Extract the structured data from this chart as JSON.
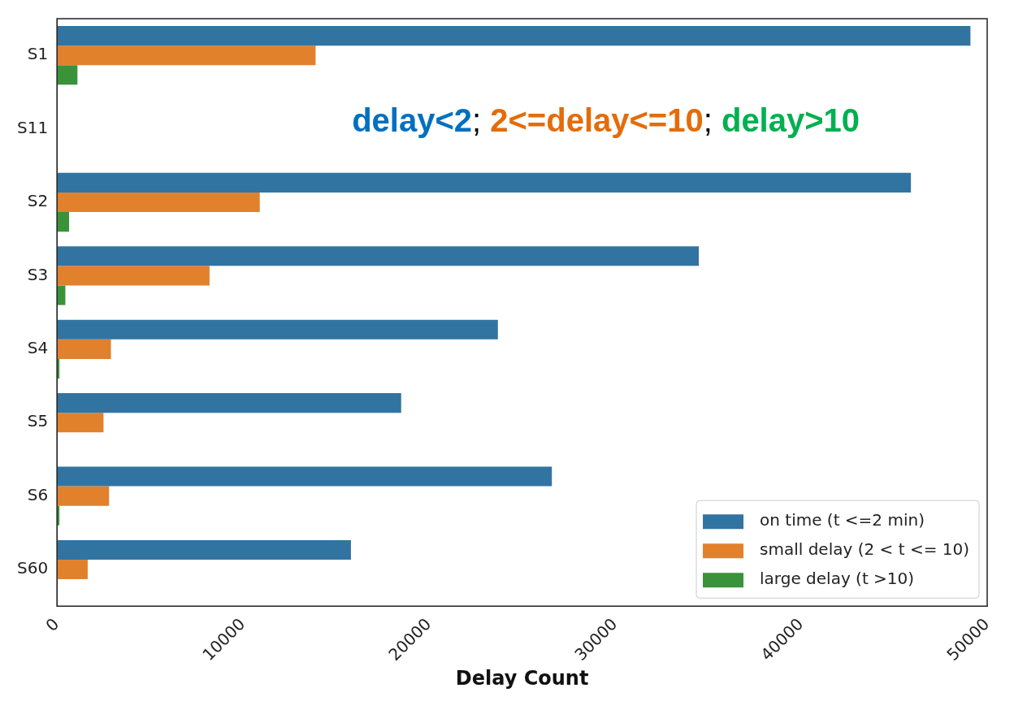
{
  "chart_data": {
    "type": "bar",
    "orientation": "horizontal",
    "xlabel": "Delay Count",
    "categories": [
      "S1",
      "S11",
      "S2",
      "S3",
      "S4",
      "S5",
      "S6",
      "S60"
    ],
    "series": [
      {
        "name": "on time (t <=2 min)",
        "color": "#3274a1",
        "values": [
          49100,
          0,
          45900,
          34500,
          23700,
          18500,
          26600,
          15800
        ]
      },
      {
        "name": "small delay (2 < t <= 10)",
        "color": "#e1812c",
        "values": [
          13900,
          0,
          10900,
          8200,
          2900,
          2500,
          2800,
          1650
        ]
      },
      {
        "name": "large delay (t >10)",
        "color": "#3a923a",
        "values": [
          1100,
          0,
          650,
          450,
          130,
          0,
          130,
          0
        ]
      }
    ],
    "xlim": [
      0,
      50000
    ],
    "xticks": [
      0,
      10000,
      20000,
      30000,
      40000,
      50000
    ],
    "annotations": [
      "delay<2; 2<=delay<=10; delay>10"
    ],
    "legend": "bottom right",
    "grid": false
  }
}
